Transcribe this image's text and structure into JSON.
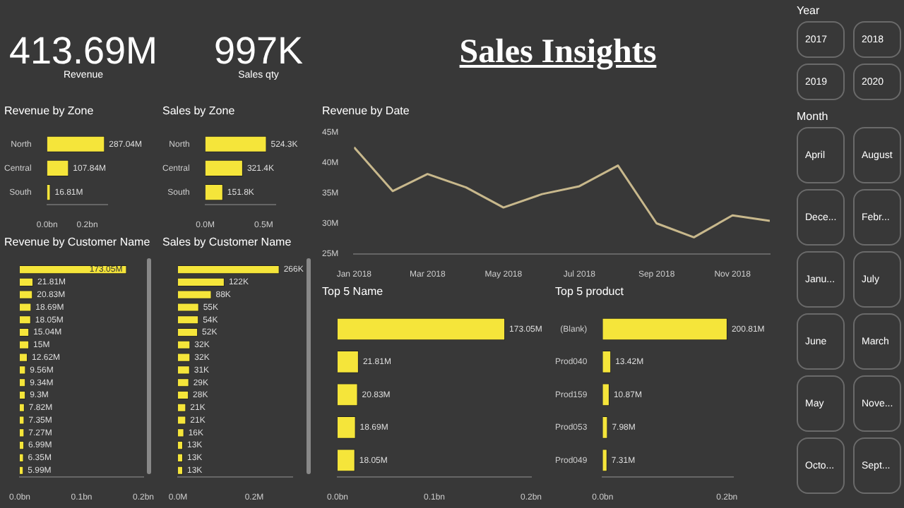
{
  "chart_data": [
    {
      "type": "other",
      "title": "Sales Insights",
      "annotations": [
        "413.69M",
        "Revenue",
        "997K",
        "Sales qty"
      ]
    },
    {
      "type": "bar",
      "title": "Revenue by Zone",
      "orientation": "horizontal",
      "categories": [
        "North",
        "Central",
        "South"
      ],
      "values": [
        287040000,
        107840000,
        16810000
      ],
      "value_labels": [
        "287.04M",
        "107.84M",
        "16.81M"
      ],
      "color": "#f5e53a",
      "xlim": [
        0,
        300000000
      ],
      "xticks": [
        {
          "value": 0,
          "label": "0.0bn"
        },
        {
          "value": 200000000,
          "label": "0.2bn"
        }
      ]
    },
    {
      "type": "bar",
      "title": "Sales by Zone",
      "orientation": "horizontal",
      "categories": [
        "North",
        "Central",
        "South"
      ],
      "values": [
        524300,
        321400,
        151800
      ],
      "value_labels": [
        "524.3K",
        "321.4K",
        "151.8K"
      ],
      "color": "#f5e53a",
      "xlim": [
        0,
        600000
      ],
      "xticks": [
        {
          "value": 0,
          "label": "0.0M"
        },
        {
          "value": 500000,
          "label": "0.5M"
        }
      ]
    },
    {
      "type": "line",
      "title": "Revenue by Date",
      "x": [
        "2018-01",
        "2018-02",
        "2018-03",
        "2018-04",
        "2018-05",
        "2018-06",
        "2018-07",
        "2018-08",
        "2018-09",
        "2018-10",
        "2018-11",
        "2018-12"
      ],
      "values": [
        42500000,
        35300000,
        38100000,
        35900000,
        32600000,
        34800000,
        36100000,
        39500000,
        30000000,
        27700000,
        31300000,
        30400000
      ],
      "color": "#c8b88c",
      "marker": "none",
      "xlim": [
        "2018-01",
        "2018-12"
      ],
      "xticks": [
        {
          "value": "2018-01",
          "label": "Jan 2018"
        },
        {
          "value": "2018-03",
          "label": "Mar 2018"
        },
        {
          "value": "2018-05",
          "label": "May 2018"
        },
        {
          "value": "2018-07",
          "label": "Jul 2018"
        },
        {
          "value": "2018-09",
          "label": "Sep 2018"
        },
        {
          "value": "2018-11",
          "label": "Nov 2018"
        }
      ],
      "ylim": [
        25000000,
        45000000
      ],
      "yticks": [
        {
          "value": 25000000,
          "label": "25M"
        },
        {
          "value": 30000000,
          "label": "30M"
        },
        {
          "value": 35000000,
          "label": "35M"
        },
        {
          "value": 40000000,
          "label": "40M"
        },
        {
          "value": 45000000,
          "label": "45M"
        }
      ]
    },
    {
      "type": "other",
      "title": "Year",
      "annotations": [
        "2017",
        "2018",
        "2019",
        "2020"
      ]
    },
    {
      "type": "other",
      "title": "Month",
      "annotations": [
        "April",
        "August",
        "Dece...",
        "Febr...",
        "Janu...",
        "July",
        "June",
        "March",
        "May",
        "Nove...",
        "Octo...",
        "Sept..."
      ]
    },
    {
      "type": "bar",
      "title": "Revenue by Customer Name",
      "orientation": "horizontal",
      "categories": [
        null,
        null,
        null,
        null,
        null,
        null,
        null,
        null,
        null,
        null,
        null,
        null,
        null,
        null,
        null,
        null,
        null
      ],
      "values": [
        173050000,
        21810000,
        20830000,
        18690000,
        18050000,
        15040000,
        15000000,
        12620000,
        9560000,
        9340000,
        9300000,
        7820000,
        7350000,
        7270000,
        6990000,
        6350000,
        5990000
      ],
      "value_labels": [
        "173.05M",
        "21.81M",
        "20.83M",
        "18.69M",
        "18.05M",
        "15.04M",
        "15M",
        "12.62M",
        "9.56M",
        "9.34M",
        "9.3M",
        "7.82M",
        "7.35M",
        "7.27M",
        "6.99M",
        "6.35M",
        "5.99M"
      ],
      "color": "#f5e53a",
      "xlim": [
        0,
        200000000
      ],
      "xticks": [
        {
          "value": 0,
          "label": "0.0bn"
        },
        {
          "value": 100000000,
          "label": "0.1bn"
        },
        {
          "value": 200000000,
          "label": "0.2bn"
        }
      ]
    },
    {
      "type": "bar",
      "title": "Sales by Customer Name",
      "orientation": "horizontal",
      "categories": [
        null,
        null,
        null,
        null,
        null,
        null,
        null,
        null,
        null,
        null,
        null,
        null,
        null,
        null,
        null,
        null,
        null
      ],
      "values": [
        266000,
        122000,
        88000,
        55000,
        54000,
        52000,
        32000,
        32000,
        31000,
        29000,
        28000,
        21000,
        21000,
        16000,
        13000,
        13000,
        13000
      ],
      "value_labels": [
        "266K",
        "122K",
        "88K",
        "55K",
        "54K",
        "52K",
        "32K",
        "32K",
        "31K",
        "29K",
        "28K",
        "21K",
        "21K",
        "16K",
        "13K",
        "13K",
        "13K"
      ],
      "color": "#f5e53a",
      "xlim": [
        0,
        300000
      ],
      "xticks": [
        {
          "value": 0,
          "label": "0.0M"
        },
        {
          "value": 200000,
          "label": "0.2M"
        }
      ]
    },
    {
      "type": "bar",
      "title": "Top 5 Name",
      "orientation": "horizontal",
      "categories": [
        null,
        null,
        null,
        null,
        null
      ],
      "values": [
        173050000,
        21810000,
        20830000,
        18690000,
        18050000
      ],
      "value_labels": [
        "173.05M",
        "21.81M",
        "20.83M",
        "18.69M",
        "18.05M"
      ],
      "color": "#f5e53a",
      "xlim": [
        0,
        200000000
      ],
      "xticks": [
        {
          "value": 0,
          "label": "0.0bn"
        },
        {
          "value": 100000000,
          "label": "0.1bn"
        },
        {
          "value": 200000000,
          "label": "0.2bn"
        }
      ]
    },
    {
      "type": "bar",
      "title": "Top 5 product",
      "orientation": "horizontal",
      "categories": [
        "(Blank)",
        "Prod040",
        "Prod159",
        "Prod053",
        "Prod049"
      ],
      "values": [
        200810000,
        13420000,
        10870000,
        7980000,
        7310000
      ],
      "value_labels": [
        "200.81M",
        "13.42M",
        "10.87M",
        "7.98M",
        "7.31M"
      ],
      "color": "#f5e53a",
      "xlim": [
        0,
        210000000
      ],
      "xticks": [
        {
          "value": 0,
          "label": "0.0bn"
        },
        {
          "value": 200000000,
          "label": "0.2bn"
        }
      ]
    }
  ]
}
